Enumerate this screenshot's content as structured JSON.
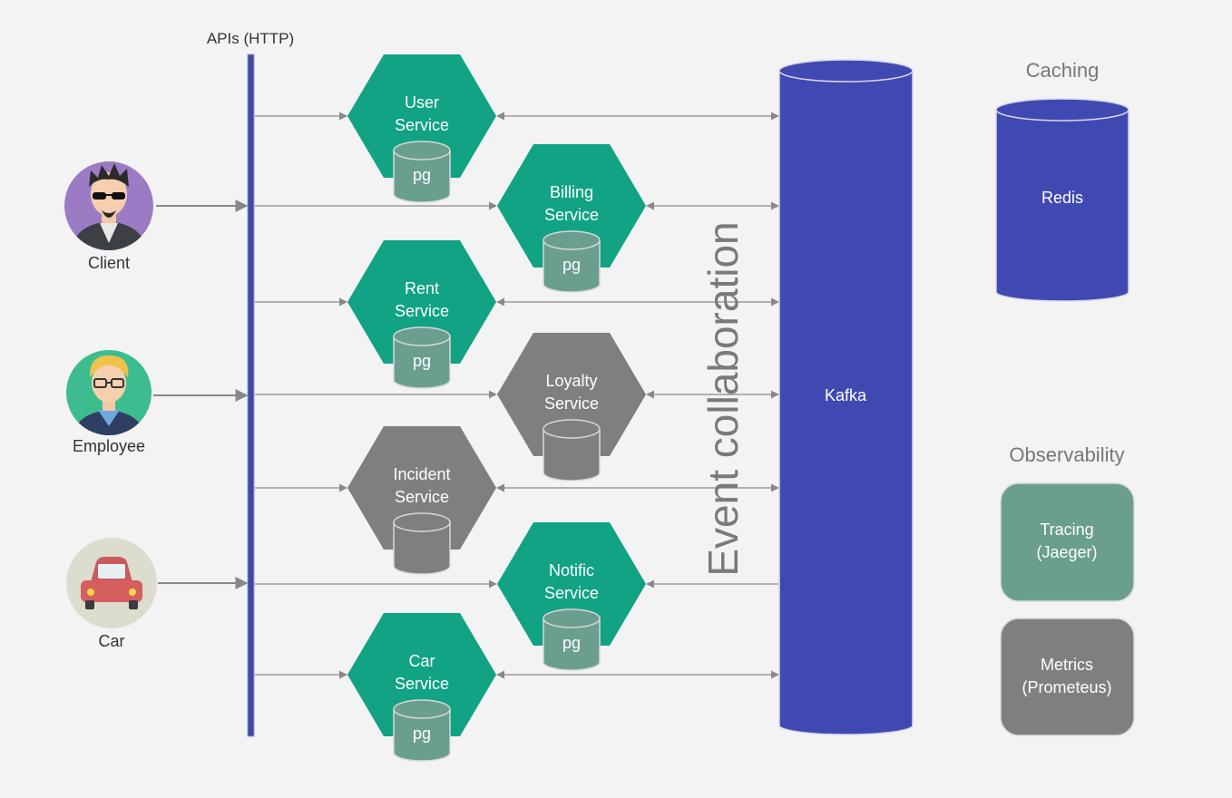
{
  "api_label": "APIs (HTTP)",
  "event_label": "Event collaboration",
  "actors": [
    {
      "id": "client",
      "label": "Client",
      "icon": "client-avatar-icon"
    },
    {
      "id": "employee",
      "label": "Employee",
      "icon": "employee-avatar-icon"
    },
    {
      "id": "car",
      "label": "Car",
      "icon": "car-icon"
    }
  ],
  "services": [
    {
      "id": "user",
      "line1": "User",
      "line2": "Service",
      "db": "pg",
      "status": "active"
    },
    {
      "id": "billing",
      "line1": "Billing",
      "line2": "Service",
      "db": "pg",
      "status": "active"
    },
    {
      "id": "rent",
      "line1": "Rent",
      "line2": "Service",
      "db": "pg",
      "status": "active"
    },
    {
      "id": "loyalty",
      "line1": "Loyalty",
      "line2": "Service",
      "db": "",
      "status": "inactive"
    },
    {
      "id": "incident",
      "line1": "Incident",
      "line2": "Service",
      "db": "",
      "status": "inactive"
    },
    {
      "id": "notific",
      "line1": "Notific",
      "line2": "Service",
      "db": "pg",
      "status": "active"
    },
    {
      "id": "car",
      "line1": "Car",
      "line2": "Service",
      "db": "pg",
      "status": "active"
    }
  ],
  "kafka": {
    "label": "Kafka"
  },
  "caching": {
    "heading": "Caching",
    "store": "Redis"
  },
  "observability": {
    "heading": "Observability",
    "tracing": {
      "line1": "Tracing",
      "line2": "(Jaeger)"
    },
    "metrics": {
      "line1": "Metrics",
      "line2": "(Prometeus)"
    }
  },
  "colors": {
    "active": "#11a383",
    "inactive": "#7f7f7f",
    "db_active": "#6a9e8f",
    "db_inactive": "#7f7f7f",
    "kafka": "#4049b2",
    "api_bar": "#3f4aa6",
    "tracing": "#6a9e8f",
    "metrics": "#7f7f7f",
    "arrow": "#888888"
  }
}
